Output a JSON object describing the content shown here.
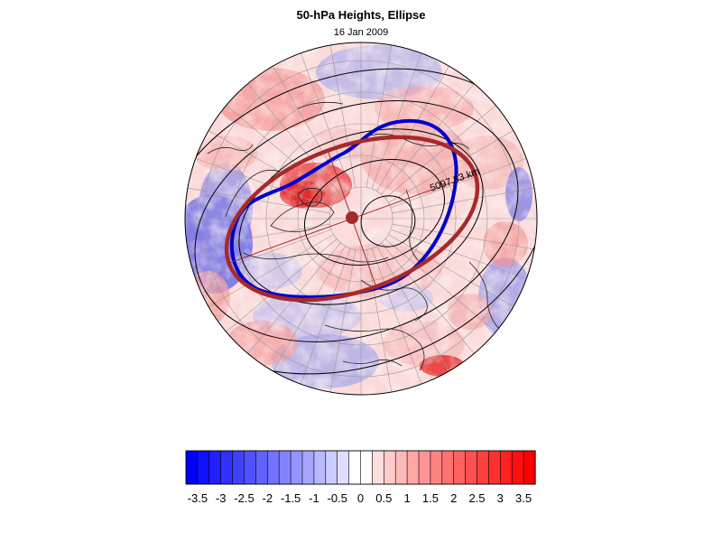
{
  "title": "50-hPa Heights, Ellipse",
  "subtitle": "16 Jan 2009",
  "map": {
    "projection": "north-polar-stereographic",
    "field": "height anomaly (shaded)",
    "ellipse_annotation": "5097.83 km",
    "colors": {
      "neg_max": "#0000ff",
      "pos_max": "#ff0000",
      "fitted_ellipse": "#a52a2a",
      "contour_ellipse": "#0000cc",
      "contour": "#000000",
      "graticule": "#9a9a9a"
    }
  },
  "colorbar": {
    "tick_labels": [
      "-3.5",
      "-3",
      "-2.5",
      "-2",
      "-1.5",
      "-1",
      "-0.5",
      "0",
      "0.5",
      "1",
      "1.5",
      "2",
      "2.5",
      "3",
      "3.5"
    ],
    "levels": [
      -3.5,
      -3.25,
      -3,
      -2.75,
      -2.5,
      -2.25,
      -2,
      -1.75,
      -1.5,
      -1.25,
      -1,
      -0.75,
      -0.5,
      -0.25,
      0,
      0.25,
      0.5,
      0.75,
      1,
      1.25,
      1.5,
      1.75,
      2,
      2.25,
      2.5,
      2.75,
      3,
      3.25,
      3.5
    ]
  }
}
